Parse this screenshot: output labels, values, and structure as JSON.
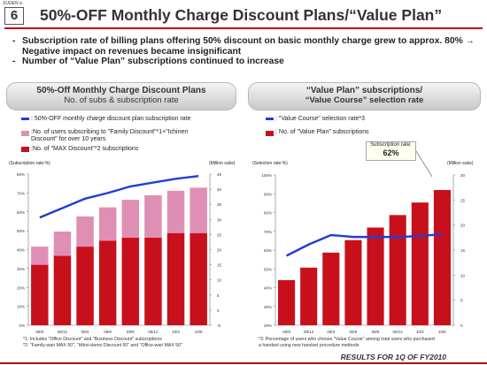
{
  "slide_label": "SUDEN o.",
  "slide_number": "6",
  "title": "50%-OFF Monthly Charge Discount Plans/“Value Plan”",
  "bullets": [
    "Subscription rate of billing plans offering 50% discount on basic monthly charge grew to approx. 80%  → Negative impact on revenues became insignificant",
    "Number of “Value Plan” subscriptions continued to increase"
  ],
  "left_panel": {
    "heading": "50%-Off Monthly Charge Discount Plans",
    "subheading": "No. of subs & subscription rate",
    "legend": {
      "rate": ": 50%-OFF monthly charge discount plan subscription rate",
      "family": ":No. of users subscribing to \"Family Discount\"*1+\"Ichinen Discount\" for over 10 years",
      "max": ":No. of \"MAX Discount\"*2 subscriptions"
    },
    "y_left_label": "(Subscription rate:%)",
    "y_right_label": "(Million subs)",
    "footnotes": [
      "*1: Includes \"Office Discount\" and \"Business Discount\" subscriptions",
      "*2: \"Family-wari MAX 50\", \"Hitori-demo Discount 50\" and \"Office-wari MAX 50\""
    ]
  },
  "right_panel": {
    "heading": "“Value Plan” subscriptions/",
    "subheading": "“Value Course” selection rate",
    "legend": {
      "rate": ": \"Value Course\" selection rate*3",
      "subs": ": No. of \"Value Plan\" subscriptions"
    },
    "callout_label": "Subscription rate:",
    "callout_value": "62%",
    "y_left_label": "(Selection rate:%)",
    "y_right_label": "(Million subs)",
    "footnotes": [
      "*3: Percentage of users who choose \"Value Course\" among total users who purchased",
      "a handset using new handset procedure methods"
    ]
  },
  "footer": "RESULTS FOR 1Q OF FY2010",
  "colors": {
    "accent_red": "#c00000",
    "bar_red": "#c8101c",
    "bar_pink": "#e08fb4",
    "line_blue": "#1f3fd0"
  },
  "chart_data": [
    {
      "type": "bar",
      "stacked": true,
      "categories": [
        "08/9",
        "08/12",
        "09/3",
        "09/6",
        "09/9",
        "09/12",
        "10/3",
        "10/6"
      ],
      "series": [
        {
          "name": "No. of \"MAX Discount\" subscriptions",
          "axis": "right",
          "values": [
            20,
            23,
            26,
            28,
            29,
            29,
            30.5,
            30.5
          ]
        },
        {
          "name": "No. of users subscribing to \"Family Discount\" + \"Ichinen Discount\" for over 10 years",
          "axis": "right",
          "values": [
            6,
            8,
            10,
            11,
            12.5,
            14,
            14,
            15
          ]
        },
        {
          "name": "50%-OFF monthly charge discount plan subscription rate",
          "type": "line",
          "axis": "left",
          "values": [
            57,
            62,
            67,
            70,
            73.5,
            75.5,
            77.5,
            79
          ]
        }
      ],
      "y_left": {
        "min": 0,
        "max": 80,
        "ticks": [
          0,
          10,
          20,
          30,
          40,
          50,
          60,
          70,
          80
        ]
      },
      "y_right": {
        "min": -5,
        "max": 45,
        "ticks": [
          -5,
          0,
          5,
          10,
          15,
          20,
          25,
          30,
          35,
          40,
          45
        ]
      }
    },
    {
      "type": "bar",
      "categories": [
        "08/9",
        "08/12",
        "09/3",
        "09/6",
        "09/9",
        "09/12",
        "10/3",
        "10/6"
      ],
      "series": [
        {
          "name": "No. of \"Value Plan\" subscriptions",
          "axis": "right",
          "values": [
            9,
            11.5,
            14.5,
            17,
            19.5,
            22,
            24.5,
            27
          ]
        },
        {
          "name": "\"Value Course\" selection rate",
          "type": "line",
          "axis": "left",
          "values": [
            57,
            63,
            68,
            67,
            67,
            67,
            67.5,
            68.5
          ]
        }
      ],
      "y_left": {
        "min": 20,
        "max": 100,
        "ticks": [
          20,
          30,
          40,
          50,
          60,
          70,
          80,
          90,
          100
        ]
      },
      "y_right": {
        "min": 0,
        "max": 30,
        "ticks": [
          0,
          5,
          10,
          15,
          20,
          25,
          30
        ]
      }
    }
  ]
}
